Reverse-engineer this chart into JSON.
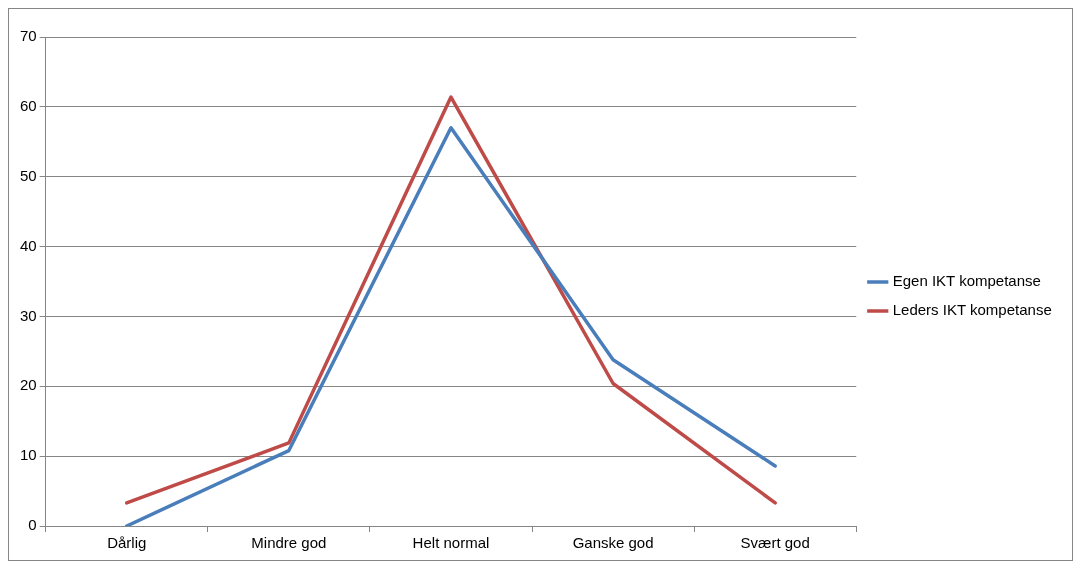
{
  "chart_data": {
    "type": "line",
    "categories": [
      "Dårlig",
      "Mindre god",
      "Helt normal",
      "Ganske god",
      "Svært god"
    ],
    "series": [
      {
        "name": "Egen IKT kompetanse",
        "color": "#4a7ebb",
        "values": [
          0,
          10.8,
          57,
          23.8,
          8.6
        ]
      },
      {
        "name": "Leders IKT kompetanse",
        "color": "#be4b48",
        "values": [
          3.3,
          11.9,
          61.4,
          20.4,
          3.3
        ]
      }
    ],
    "ylim": [
      0,
      70
    ],
    "yticks": [
      0,
      10,
      20,
      30,
      40,
      50,
      60,
      70
    ],
    "grid": "y",
    "legend": "right",
    "marker": "none",
    "line_style": "solid"
  }
}
